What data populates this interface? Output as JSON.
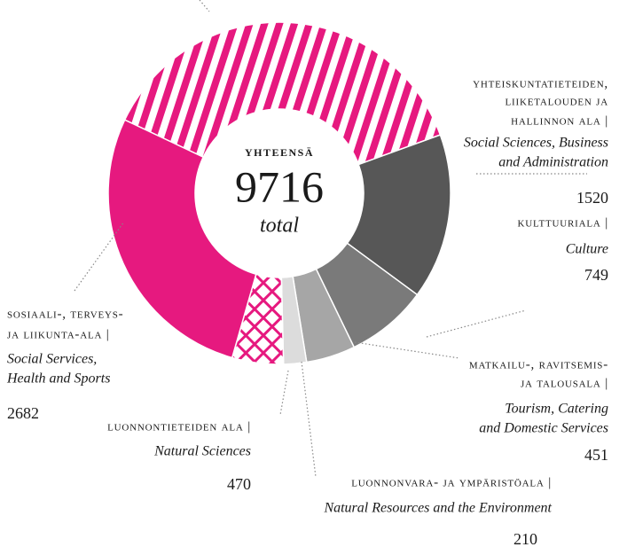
{
  "chart_data": {
    "type": "donut",
    "total_label": "yhteensä",
    "total": 9716,
    "total_caption": "total",
    "values": [
      3634,
      1520,
      749,
      451,
      210,
      470,
      2682
    ],
    "colors": [
      "#e6197f",
      "#575757",
      "#7a7a7a",
      "#a6a6a6",
      "#dcdcdc",
      "#e6197f",
      "#e6197f"
    ],
    "patterns": [
      "stripes",
      null,
      null,
      null,
      null,
      "crosshatch",
      null
    ],
    "labels": [
      null,
      {
        "fi": [
          "yhteiskuntatieteiden,",
          "liiketalouden ja",
          "hallinnon ala |"
        ],
        "en": [
          "Social Sciences, Business",
          "and Administration"
        ]
      },
      {
        "fi": [
          "kulttuuriala |"
        ],
        "en": [
          "Culture"
        ]
      },
      {
        "fi": [
          "matkailu-, ravitsemis-",
          "ja talousala |"
        ],
        "en": [
          "Tourism, Catering",
          "and Domestic Services"
        ]
      },
      {
        "fi": [
          "luonnonvara- ja ympäristöala |"
        ],
        "en": [
          "Natural Resources and the Environment"
        ]
      },
      {
        "fi": [
          "luonnontieteiden ala |"
        ],
        "en": [
          "Natural Sciences"
        ]
      },
      {
        "fi": [
          "sosiaali-, terveys-",
          "ja liikunta-ala |"
        ],
        "en": [
          "Social Services,",
          "Health and Sports"
        ]
      }
    ]
  }
}
